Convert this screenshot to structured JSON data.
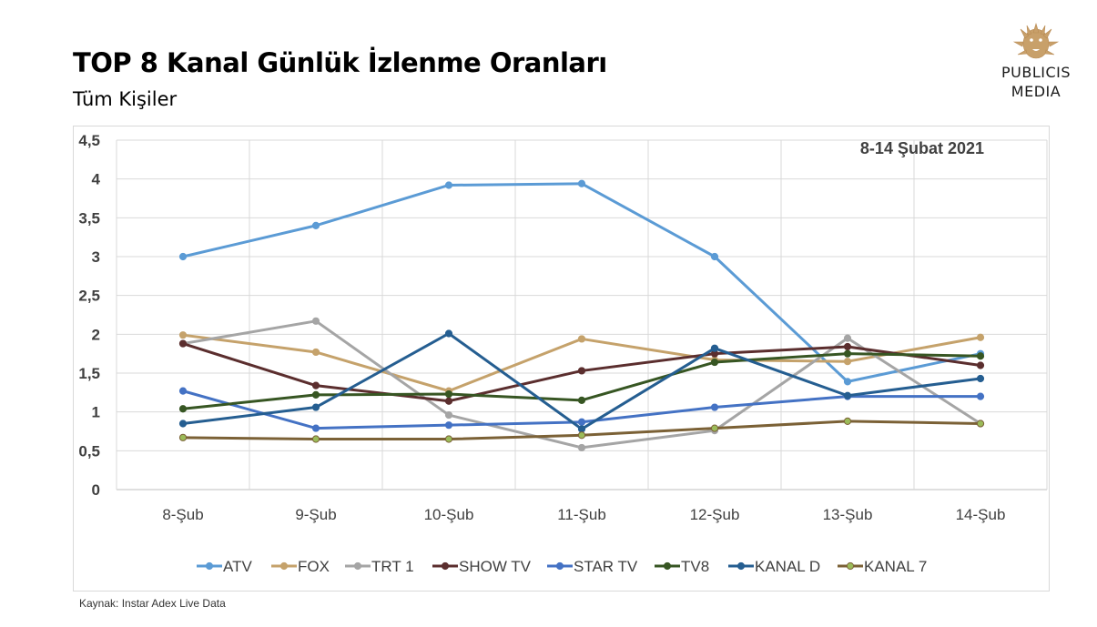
{
  "header": {
    "title": "TOP 8 Kanal Günlük İzlenme Oranları",
    "subtitle": "Tüm Kişiler"
  },
  "logo": {
    "line1": "PUBLICIS",
    "line2": "MEDIA",
    "icon": "lion-head-icon",
    "color": "#c8a06a"
  },
  "source": "Kaynak: Instar  Adex Live Data",
  "chart_data": {
    "type": "line",
    "annotation": "8-14 Şubat 2021",
    "categories": [
      "8-Şub",
      "9-Şub",
      "10-Şub",
      "11-Şub",
      "12-Şub",
      "13-Şub",
      "14-Şub"
    ],
    "ylim": [
      0,
      4.5
    ],
    "yticks": [
      "0",
      "0,5",
      "1",
      "1,5",
      "2",
      "2,5",
      "3",
      "3,5",
      "4",
      "4,5"
    ],
    "grid": true,
    "legend_position": "bottom",
    "series": [
      {
        "name": "ATV",
        "color": "#5b9bd5",
        "values": [
          3.0,
          3.4,
          3.92,
          3.94,
          3.0,
          1.39,
          1.75
        ]
      },
      {
        "name": "FOX",
        "color": "#c5a26b",
        "values": [
          1.99,
          1.77,
          1.27,
          1.94,
          1.67,
          1.65,
          1.96
        ]
      },
      {
        "name": "TRT 1",
        "color": "#a5a5a5",
        "values": [
          1.88,
          2.17,
          0.96,
          0.54,
          0.76,
          1.95,
          0.85
        ]
      },
      {
        "name": "SHOW TV",
        "color": "#5b2e2e",
        "values": [
          1.88,
          1.34,
          1.14,
          1.53,
          1.75,
          1.84,
          1.6
        ]
      },
      {
        "name": "STAR TV",
        "color": "#4472c4",
        "values": [
          1.27,
          0.79,
          0.83,
          0.87,
          1.06,
          1.2,
          1.2
        ]
      },
      {
        "name": "TV8",
        "color": "#375623",
        "values": [
          1.04,
          1.22,
          1.23,
          1.15,
          1.64,
          1.75,
          1.72
        ]
      },
      {
        "name": "KANAL D",
        "color": "#255e91",
        "values": [
          0.85,
          1.06,
          2.01,
          0.78,
          1.82,
          1.21,
          1.43
        ]
      },
      {
        "name": "KANAL 7",
        "color": "#7b6136",
        "values": [
          0.67,
          0.65,
          0.65,
          0.7,
          0.79,
          0.88,
          0.85
        ]
      }
    ],
    "marker_fill_overrides": {
      "KANAL 7": "#9bbb59"
    }
  }
}
